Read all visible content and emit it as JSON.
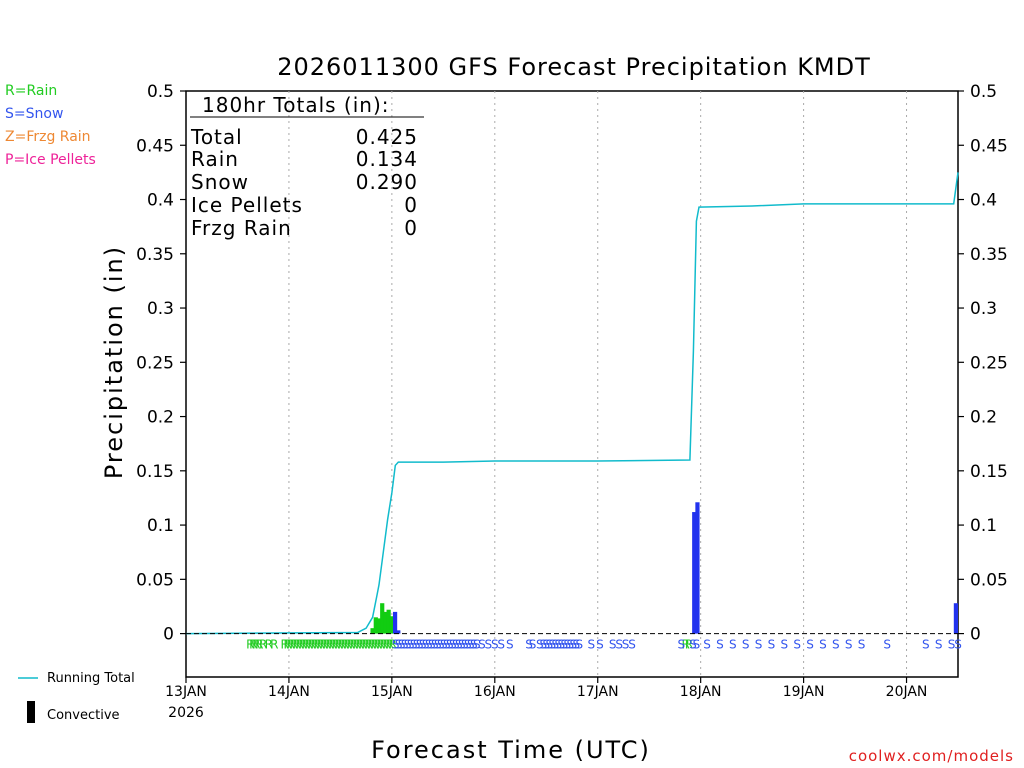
{
  "chart_data": {
    "type": "bar",
    "title": "2026011300 GFS Forecast Precipitation KMDT",
    "xlabel": "Forecast Time (UTC)",
    "ylabel": "Precipitation (in)",
    "ylim": [
      -0.04,
      0.5
    ],
    "x_unit": "hours since 2026-01-13 00Z",
    "xlim": [
      0,
      180
    ],
    "yticks": [
      "0",
      "0.05",
      "0.1",
      "0.15",
      "0.2",
      "0.25",
      "0.3",
      "0.35",
      "0.4",
      "0.45",
      "0.5"
    ],
    "ytick_values": [
      0,
      0.05,
      0.1,
      0.15,
      0.2,
      0.25,
      0.3,
      0.35,
      0.4,
      0.45,
      0.5
    ],
    "xticks": [
      {
        "hour": 0,
        "label": "13JAN",
        "sublabel": "2026"
      },
      {
        "hour": 24,
        "label": "14JAN"
      },
      {
        "hour": 48,
        "label": "15JAN"
      },
      {
        "hour": 72,
        "label": "16JAN"
      },
      {
        "hour": 96,
        "label": "17JAN"
      },
      {
        "hour": 120,
        "label": "18JAN"
      },
      {
        "hour": 144,
        "label": "19JAN"
      },
      {
        "hour": 168,
        "label": "20JAN"
      }
    ],
    "grid": "vertical dotted",
    "legend": [
      {
        "label": "R=Rain",
        "color": "#22cc22"
      },
      {
        "label": "S=Snow",
        "color": "#3355ee"
      },
      {
        "label": "Z=Frzg Rain",
        "color": "#ee8833"
      },
      {
        "label": "P=Ice Pellets",
        "color": "#ee2299"
      }
    ],
    "bottom_legend": [
      {
        "label": "Running Total",
        "color": "#11bbcc",
        "kind": "line"
      },
      {
        "label": "Convective",
        "color": "#000000",
        "kind": "bar"
      }
    ],
    "totals": {
      "header": "180hr Totals (in):",
      "rows": [
        {
          "label": "Total",
          "value": "0.425"
        },
        {
          "label": "Rain",
          "value": "0.134"
        },
        {
          "label": "Snow",
          "value": "0.290"
        },
        {
          "label": "Ice Pellets",
          "value": "0"
        },
        {
          "label": "Frzg Rain",
          "value": "0"
        }
      ]
    },
    "bars": [
      {
        "hour": 43.5,
        "value": 0.005,
        "type": "rain"
      },
      {
        "hour": 44.25,
        "value": 0.015,
        "type": "rain"
      },
      {
        "hour": 45,
        "value": 0.014,
        "type": "rain"
      },
      {
        "hour": 45.75,
        "value": 0.028,
        "type": "rain"
      },
      {
        "hour": 46.5,
        "value": 0.02,
        "type": "rain"
      },
      {
        "hour": 47.25,
        "value": 0.022,
        "type": "rain"
      },
      {
        "hour": 48,
        "value": 0.016,
        "type": "rain"
      },
      {
        "hour": 48.75,
        "value": 0.02,
        "type": "snow"
      },
      {
        "hour": 49.5,
        "value": 0.003,
        "type": "snow"
      },
      {
        "hour": 118.5,
        "value": 0.112,
        "type": "snow"
      },
      {
        "hour": 119.25,
        "value": 0.121,
        "type": "snow"
      },
      {
        "hour": 180,
        "value": 0.028,
        "type": "snow"
      }
    ],
    "running_total": [
      [
        0,
        0
      ],
      [
        40,
        0.001
      ],
      [
        42,
        0.005
      ],
      [
        43.5,
        0.015
      ],
      [
        44.5,
        0.035
      ],
      [
        45,
        0.045
      ],
      [
        46,
        0.075
      ],
      [
        47,
        0.105
      ],
      [
        48,
        0.13
      ],
      [
        48.8,
        0.155
      ],
      [
        49.5,
        0.158
      ],
      [
        60,
        0.158
      ],
      [
        72,
        0.159
      ],
      [
        96,
        0.159
      ],
      [
        117.5,
        0.16
      ],
      [
        118.3,
        0.26
      ],
      [
        119,
        0.38
      ],
      [
        119.6,
        0.393
      ],
      [
        132,
        0.394
      ],
      [
        144,
        0.396
      ],
      [
        156,
        0.396
      ],
      [
        168,
        0.396
      ],
      [
        179,
        0.396
      ],
      [
        180,
        0.425
      ]
    ],
    "ptype_marks": {
      "rain": [
        15,
        15.7,
        16.4,
        17.1,
        18,
        19.3,
        20.6,
        23,
        23.7,
        24.4,
        25.1,
        25.8,
        26.5,
        27.2,
        27.9,
        28.6,
        29.3,
        30,
        30.7,
        31.4,
        32.1,
        32.8,
        33.5,
        34.2,
        34.9,
        35.6,
        36.3,
        37,
        37.7,
        38.4,
        39.1,
        39.8,
        40.5,
        41.2,
        41.9,
        42.6,
        43.3,
        44,
        44.7,
        45.4,
        46.1,
        46.8,
        47.5,
        48.2,
        116.5,
        117.3
      ],
      "snow": [
        48.9,
        49.6,
        50.3,
        51,
        51.7,
        52.4,
        53.1,
        53.8,
        54.5,
        55.2,
        55.9,
        56.6,
        57.3,
        58,
        58.7,
        59.4,
        60.1,
        60.8,
        61.5,
        62.2,
        62.9,
        63.6,
        64.3,
        65,
        65.7,
        66.4,
        67.1,
        67.8,
        69,
        70.5,
        72,
        73.5,
        75.5,
        80,
        80.8,
        82.5,
        83.3,
        84,
        84.7,
        85.4,
        86.1,
        86.8,
        87.5,
        88.2,
        88.9,
        89.6,
        90.3,
        91,
        91.7,
        94.5,
        96.5,
        99.5,
        101,
        102.5,
        104,
        115.5,
        118.2,
        119,
        121.5,
        124.5,
        127.5,
        130.5,
        133.5,
        136.5,
        139.5,
        142.5,
        145.5,
        148.5,
        151.5,
        154.5,
        157.5,
        163.5,
        172.5,
        175.5,
        178.5,
        180
      ]
    },
    "colors": {
      "rain": "#11cc11",
      "snow": "#2233ee",
      "running_total": "#11bbcc",
      "grid": "#aaaaaa",
      "credit": "#e02020"
    }
  },
  "credit": "coolwx.com/models"
}
